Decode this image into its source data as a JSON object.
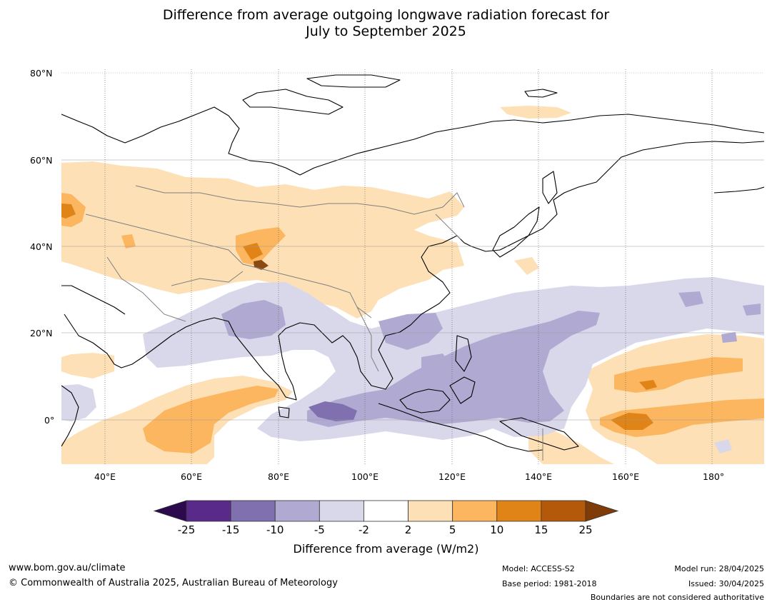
{
  "title_line1": "Difference from average outgoing longwave radiation forecast for",
  "title_line2": "July to September 2025",
  "map": {
    "lat_labels": [
      "80°N",
      "60°N",
      "40°N",
      "20°N",
      "0°"
    ],
    "lon_labels": [
      "40°E",
      "60°E",
      "80°E",
      "100°E",
      "120°E",
      "140°E",
      "160°E",
      "180°"
    ],
    "ocean_color": "#ffffff",
    "land_coast_color": "#000000",
    "border_color": "#808080"
  },
  "colorbar": {
    "title": "Difference from average (W/m2)",
    "ticks": [
      "-25",
      "-15",
      "-10",
      "-5",
      "-2",
      "2",
      "5",
      "10",
      "15",
      "25"
    ],
    "colors": [
      "#2d0a4e",
      "#5a2a8a",
      "#8070b0",
      "#b0aad2",
      "#d9d8ea",
      "#ffffff",
      "#fde0b5",
      "#fbb65f",
      "#e08418",
      "#b35909",
      "#7f3b08"
    ]
  },
  "footer": {
    "url": "www.bom.gov.au/climate",
    "copyright": "© Commonwealth of Australia 2025, Australian Bureau of Meteorology",
    "model": "Model: ACCESS-S2",
    "base_period": "Base period: 1981-2018",
    "model_run": "Model run: 28/04/2025",
    "issued": "Issued: 30/04/2025",
    "disclaimer": "Boundaries are not considered authoritative"
  }
}
